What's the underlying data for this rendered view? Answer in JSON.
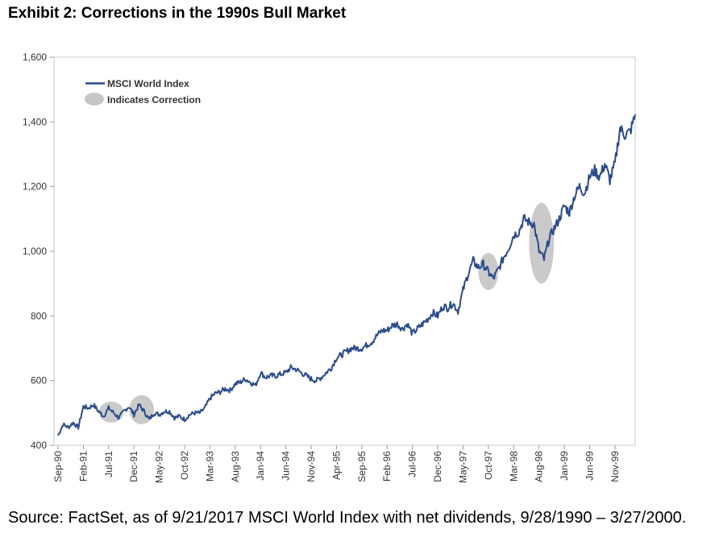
{
  "title": "Exhibit 2: Corrections in the 1990s Bull Market",
  "source": "Source: FactSet, as of 9/21/2017 MSCI World Index with net dividends, 9/28/1990 – 3/27/2000.",
  "chart_data": {
    "type": "line",
    "title": "Exhibit 2: Corrections in the 1990s Bull Market",
    "xlabel": "",
    "ylabel": "",
    "ylim": [
      400,
      1600
    ],
    "yticks": [
      400,
      600,
      800,
      1000,
      1200,
      1400,
      1600
    ],
    "ytick_labels": [
      "400",
      "600",
      "800",
      "1,000",
      "1,200",
      "1,400",
      "1,600"
    ],
    "xlim": [
      "1990-09",
      "2000-03"
    ],
    "xtick_labels": [
      "Sep-90",
      "Feb-91",
      "Jul-91",
      "Dec-91",
      "May-92",
      "Oct-92",
      "Mar-93",
      "Aug-93",
      "Jan-94",
      "Jun-94",
      "Nov-94",
      "Apr-95",
      "Sep-95",
      "Feb-96",
      "Jul-96",
      "Dec-96",
      "May-97",
      "Oct-97",
      "Mar-98",
      "Aug-98",
      "Jan-99",
      "Jun-99",
      "Nov-99"
    ],
    "grid": false,
    "legend_position": "top-left",
    "legend": [
      "MSCI World Index",
      "Indicates Correction"
    ],
    "series": [
      {
        "name": "MSCI World Index",
        "color": "#2b4b8c",
        "x": [
          "1990-09",
          "1990-10",
          "1990-11",
          "1990-12",
          "1991-01",
          "1991-02",
          "1991-03",
          "1991-04",
          "1991-05",
          "1991-06",
          "1991-07",
          "1991-08",
          "1991-09",
          "1991-10",
          "1991-11",
          "1991-12",
          "1992-01",
          "1992-02",
          "1992-03",
          "1992-04",
          "1992-05",
          "1992-06",
          "1992-07",
          "1992-08",
          "1992-09",
          "1992-10",
          "1992-11",
          "1992-12",
          "1993-01",
          "1993-02",
          "1993-03",
          "1993-04",
          "1993-05",
          "1993-06",
          "1993-07",
          "1993-08",
          "1993-09",
          "1993-10",
          "1993-11",
          "1993-12",
          "1994-01",
          "1994-02",
          "1994-03",
          "1994-04",
          "1994-05",
          "1994-06",
          "1994-07",
          "1994-08",
          "1994-09",
          "1994-10",
          "1994-11",
          "1994-12",
          "1995-01",
          "1995-02",
          "1995-03",
          "1995-04",
          "1995-05",
          "1995-06",
          "1995-07",
          "1995-08",
          "1995-09",
          "1995-10",
          "1995-11",
          "1995-12",
          "1996-01",
          "1996-02",
          "1996-03",
          "1996-04",
          "1996-05",
          "1996-06",
          "1996-07",
          "1996-08",
          "1996-09",
          "1996-10",
          "1996-11",
          "1996-12",
          "1997-01",
          "1997-02",
          "1997-03",
          "1997-04",
          "1997-05",
          "1997-06",
          "1997-07",
          "1997-08",
          "1997-09",
          "1997-10",
          "1997-11",
          "1997-12",
          "1998-01",
          "1998-02",
          "1998-03",
          "1998-04",
          "1998-05",
          "1998-06",
          "1998-07",
          "1998-08",
          "1998-09",
          "1998-10",
          "1998-11",
          "1998-12",
          "1999-01",
          "1999-02",
          "1999-03",
          "1999-04",
          "1999-05",
          "1999-06",
          "1999-07",
          "1999-08",
          "1999-09",
          "1999-10",
          "1999-11",
          "1999-12",
          "2000-01",
          "2000-02",
          "2000-03"
        ],
        "values": [
          430,
          465,
          455,
          470,
          455,
          520,
          515,
          525,
          505,
          490,
          515,
          500,
          485,
          505,
          520,
          495,
          525,
          505,
          480,
          500,
          495,
          505,
          505,
          485,
          490,
          480,
          495,
          500,
          500,
          515,
          545,
          560,
          565,
          575,
          570,
          590,
          595,
          605,
          595,
          585,
          625,
          610,
          615,
          615,
          620,
          625,
          640,
          635,
          625,
          615,
          605,
          600,
          610,
          625,
          640,
          670,
          680,
          690,
          700,
          700,
          700,
          710,
          720,
          740,
          755,
          755,
          770,
          775,
          760,
          775,
          745,
          760,
          775,
          790,
          810,
          800,
          830,
          825,
          840,
          815,
          880,
          930,
          970,
          950,
          960,
          935,
          915,
          945,
          980,
          1010,
          1050,
          1060,
          1100,
          1090,
          1085,
          1000,
          975,
          1040,
          1070,
          1100,
          1140,
          1120,
          1170,
          1200,
          1180,
          1230,
          1250,
          1230,
          1270,
          1220,
          1270,
          1380,
          1360,
          1370,
          1420
        ]
      }
    ],
    "corrections": [
      {
        "x_start": "1991-06",
        "x_end": "1991-09",
        "y_low": 470,
        "y_high": 535
      },
      {
        "x_start": "1991-12",
        "x_end": "1992-03",
        "y_low": 465,
        "y_high": 555
      },
      {
        "x_start": "1997-09",
        "x_end": "1997-11",
        "y_low": 880,
        "y_high": 995
      },
      {
        "x_start": "1998-07",
        "x_end": "1998-10",
        "y_low": 900,
        "y_high": 1150
      }
    ]
  }
}
